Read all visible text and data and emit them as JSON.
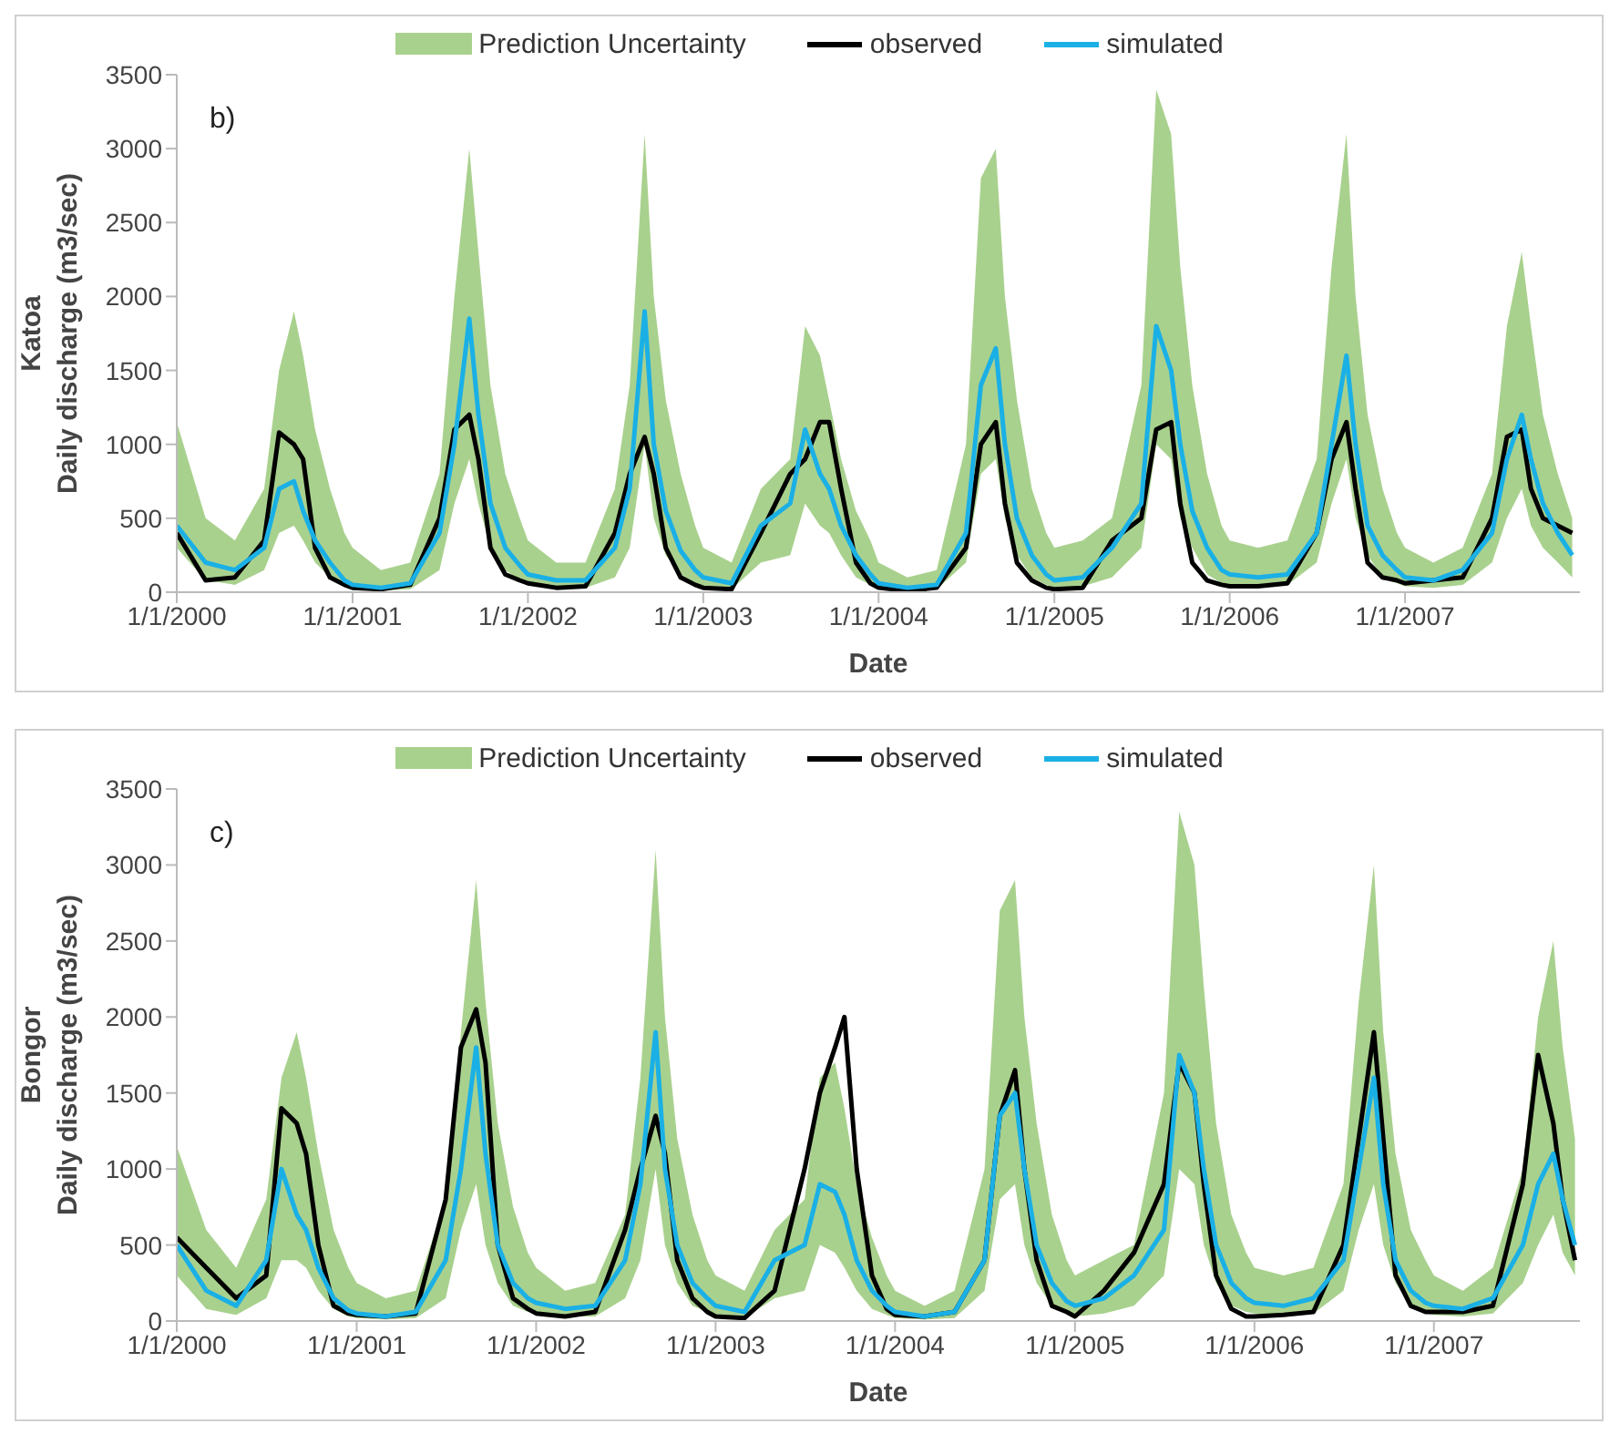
{
  "chart_data": [
    {
      "type": "line",
      "annotations": [
        "b)",
        "Prediction Uncertainty"
      ],
      "xlabel": "Date",
      "ylabel": "Katoa\nDaily discharge (m3/sec)",
      "legend": "top",
      "marker": "none",
      "line_style": "solid",
      "x": [
        "2000-01-01",
        "2000-03-01",
        "2000-05-01",
        "2000-07-01",
        "2000-08-01",
        "2000-09-01",
        "2000-09-20",
        "2000-10-15",
        "2000-11-15",
        "2000-12-15",
        "2001-01-01",
        "2001-03-01",
        "2001-05-01",
        "2001-07-01",
        "2001-08-01",
        "2001-09-01",
        "2001-09-20",
        "2001-10-15",
        "2001-11-15",
        "2001-12-15",
        "2002-01-01",
        "2002-03-01",
        "2002-05-01",
        "2002-07-01",
        "2002-08-01",
        "2002-09-01",
        "2002-09-20",
        "2002-10-15",
        "2002-11-15",
        "2002-12-15",
        "2003-01-01",
        "2003-03-01",
        "2003-05-01",
        "2003-07-01",
        "2003-08-01",
        "2003-09-01",
        "2003-09-20",
        "2003-10-15",
        "2003-11-15",
        "2003-12-15",
        "2004-01-01",
        "2004-03-01",
        "2004-05-01",
        "2004-07-01",
        "2004-08-01",
        "2004-09-01",
        "2004-09-20",
        "2004-10-15",
        "2004-11-15",
        "2004-12-15",
        "2005-01-01",
        "2005-03-01",
        "2005-05-01",
        "2005-07-01",
        "2005-08-01",
        "2005-09-01",
        "2005-09-20",
        "2005-10-15",
        "2005-11-15",
        "2005-12-15",
        "2006-01-01",
        "2006-03-01",
        "2006-05-01",
        "2006-07-01",
        "2006-08-01",
        "2006-09-01",
        "2006-09-20",
        "2006-10-15",
        "2006-11-15",
        "2006-12-15",
        "2007-01-01",
        "2007-03-01",
        "2007-05-01",
        "2007-07-01",
        "2007-08-01",
        "2007-09-01",
        "2007-09-20",
        "2007-10-15",
        "2007-11-15",
        "2007-12-15"
      ],
      "xlim": [
        "2000-01-01",
        "2007-12-31"
      ],
      "xticks": [
        {
          "value": "2000-01-01",
          "label": "1/1/2000"
        },
        {
          "value": "2001-01-01",
          "label": "1/1/2001"
        },
        {
          "value": "2002-01-01",
          "label": "1/1/2002"
        },
        {
          "value": "2003-01-01",
          "label": "1/1/2003"
        },
        {
          "value": "2004-01-01",
          "label": "1/1/2004"
        },
        {
          "value": "2005-01-01",
          "label": "1/1/2005"
        },
        {
          "value": "2006-01-01",
          "label": "1/1/2006"
        },
        {
          "value": "2007-01-01",
          "label": "1/1/2007"
        }
      ],
      "ylim": [
        0,
        3500
      ],
      "yticks": [
        0,
        500,
        1000,
        1500,
        2000,
        2500,
        3000,
        3500
      ],
      "series": [
        {
          "name": "observed",
          "color": "#000000",
          "values": [
            400,
            80,
            100,
            350,
            1080,
            1000,
            900,
            300,
            100,
            50,
            30,
            20,
            50,
            500,
            1100,
            1200,
            900,
            300,
            120,
            80,
            60,
            30,
            40,
            400,
            800,
            1050,
            800,
            300,
            100,
            50,
            30,
            20,
            400,
            800,
            900,
            1150,
            1150,
            700,
            200,
            60,
            30,
            10,
            30,
            300,
            1000,
            1150,
            600,
            200,
            80,
            30,
            20,
            30,
            350,
            500,
            1100,
            1150,
            600,
            200,
            80,
            50,
            40,
            40,
            60,
            400,
            900,
            1150,
            700,
            200,
            100,
            80,
            60,
            80,
            100,
            500,
            1050,
            1100,
            700,
            500,
            450,
            400
          ]
        },
        {
          "name": "simulated",
          "color": "#1ab0e6",
          "values": [
            450,
            200,
            150,
            300,
            700,
            750,
            550,
            350,
            200,
            80,
            50,
            30,
            60,
            400,
            1000,
            1850,
            1200,
            600,
            300,
            180,
            120,
            80,
            80,
            300,
            700,
            1900,
            1000,
            550,
            280,
            150,
            100,
            60,
            450,
            600,
            1100,
            800,
            700,
            450,
            250,
            120,
            60,
            30,
            50,
            400,
            1400,
            1650,
            1000,
            500,
            250,
            120,
            80,
            100,
            300,
            600,
            1800,
            1500,
            1000,
            550,
            300,
            150,
            120,
            100,
            120,
            400,
            1000,
            1600,
            1000,
            450,
            250,
            150,
            100,
            80,
            150,
            400,
            900,
            1200,
            900,
            600,
            400,
            250
          ],
          "lower": [
            300,
            80,
            50,
            150,
            400,
            450,
            350,
            200,
            100,
            40,
            20,
            10,
            20,
            150,
            600,
            900,
            600,
            300,
            150,
            80,
            50,
            30,
            30,
            100,
            300,
            1000,
            500,
            250,
            120,
            60,
            40,
            20,
            200,
            250,
            600,
            450,
            400,
            250,
            100,
            50,
            20,
            10,
            20,
            200,
            800,
            900,
            500,
            250,
            100,
            50,
            30,
            40,
            100,
            300,
            1000,
            900,
            500,
            300,
            120,
            60,
            50,
            40,
            50,
            200,
            600,
            900,
            500,
            250,
            100,
            60,
            40,
            30,
            50,
            200,
            500,
            700,
            450,
            300,
            200,
            100
          ],
          "upper": [
            1150,
            500,
            350,
            700,
            1500,
            1900,
            1600,
            1100,
            700,
            400,
            300,
            150,
            200,
            800,
            2000,
            3000,
            2300,
            1400,
            800,
            500,
            350,
            200,
            200,
            700,
            1400,
            3100,
            2000,
            1300,
            800,
            450,
            300,
            200,
            700,
            900,
            1800,
            1600,
            1300,
            900,
            550,
            350,
            200,
            100,
            150,
            1000,
            2800,
            3000,
            2000,
            1300,
            700,
            400,
            300,
            350,
            500,
            1400,
            3400,
            3100,
            2200,
            1400,
            800,
            450,
            350,
            300,
            350,
            900,
            2200,
            3100,
            2000,
            1200,
            700,
            400,
            300,
            200,
            300,
            800,
            1800,
            2300,
            1800,
            1200,
            800,
            500
          ]
        }
      ]
    },
    {
      "type": "line",
      "annotations": [
        "c)",
        "Prediction Uncertainty"
      ],
      "xlabel": "Date",
      "ylabel": "Bongor\nDaily discharge (m3/sec)",
      "legend": "top",
      "marker": "none",
      "line_style": "solid",
      "x": [
        "2000-01-01",
        "2000-03-01",
        "2000-05-01",
        "2000-07-01",
        "2000-08-01",
        "2000-09-01",
        "2000-09-20",
        "2000-10-15",
        "2000-11-15",
        "2000-12-15",
        "2001-01-01",
        "2001-03-01",
        "2001-05-01",
        "2001-07-01",
        "2001-08-01",
        "2001-09-01",
        "2001-09-20",
        "2001-10-15",
        "2001-11-15",
        "2001-12-15",
        "2002-01-01",
        "2002-03-01",
        "2002-05-01",
        "2002-07-01",
        "2002-08-01",
        "2002-09-01",
        "2002-09-20",
        "2002-10-15",
        "2002-11-15",
        "2002-12-15",
        "2003-01-01",
        "2003-03-01",
        "2003-05-01",
        "2003-07-01",
        "2003-08-01",
        "2003-09-01",
        "2003-09-20",
        "2003-10-15",
        "2003-11-15",
        "2003-12-15",
        "2004-01-01",
        "2004-03-01",
        "2004-05-01",
        "2004-07-01",
        "2004-08-01",
        "2004-09-01",
        "2004-09-20",
        "2004-10-15",
        "2004-11-15",
        "2004-12-15",
        "2005-01-01",
        "2005-03-01",
        "2005-05-01",
        "2005-07-01",
        "2005-08-01",
        "2005-09-01",
        "2005-09-20",
        "2005-10-15",
        "2005-11-15",
        "2005-12-15",
        "2006-01-01",
        "2006-03-01",
        "2006-05-01",
        "2006-07-01",
        "2006-08-01",
        "2006-09-01",
        "2006-09-20",
        "2006-10-15",
        "2006-11-15",
        "2006-12-15",
        "2007-01-01",
        "2007-03-01",
        "2007-05-01",
        "2007-07-01",
        "2007-08-01",
        "2007-09-01",
        "2007-09-20",
        "2007-10-15"
      ],
      "xlim": [
        "2000-01-01",
        "2007-10-25"
      ],
      "xticks": [
        {
          "value": "2000-01-01",
          "label": "1/1/2000"
        },
        {
          "value": "2001-01-01",
          "label": "1/1/2001"
        },
        {
          "value": "2002-01-01",
          "label": "1/1/2002"
        },
        {
          "value": "2003-01-01",
          "label": "1/1/2003"
        },
        {
          "value": "2004-01-01",
          "label": "1/1/2004"
        },
        {
          "value": "2005-01-01",
          "label": "1/1/2005"
        },
        {
          "value": "2006-01-01",
          "label": "1/1/2006"
        },
        {
          "value": "2007-01-01",
          "label": "1/1/2007"
        }
      ],
      "ylim": [
        0,
        3500
      ],
      "yticks": [
        0,
        500,
        1000,
        1500,
        2000,
        2500,
        3000,
        3500
      ],
      "series": [
        {
          "name": "observed",
          "color": "#000000",
          "values": [
            550,
            350,
            150,
            300,
            1400,
            1300,
            1100,
            500,
            100,
            50,
            40,
            30,
            50,
            800,
            1800,
            2050,
            1700,
            500,
            150,
            80,
            50,
            30,
            60,
            600,
            1000,
            1350,
            1100,
            400,
            150,
            60,
            30,
            20,
            200,
            1000,
            1500,
            1800,
            2000,
            1000,
            300,
            80,
            40,
            30,
            60,
            400,
            1350,
            1650,
            1000,
            400,
            100,
            60,
            30,
            200,
            450,
            900,
            1700,
            1500,
            900,
            300,
            80,
            30,
            30,
            40,
            60,
            500,
            1200,
            1900,
            1200,
            300,
            100,
            60,
            60,
            60,
            100,
            900,
            1750,
            1300,
            800,
            400
          ]
        },
        {
          "name": "simulated",
          "color": "#1ab0e6",
          "values": [
            500,
            200,
            100,
            400,
            1000,
            700,
            600,
            350,
            150,
            70,
            50,
            30,
            60,
            400,
            1000,
            1800,
            1100,
            500,
            250,
            150,
            120,
            80,
            100,
            400,
            900,
            1900,
            1000,
            500,
            250,
            150,
            100,
            60,
            400,
            500,
            900,
            850,
            700,
            400,
            200,
            100,
            60,
            30,
            60,
            400,
            1350,
            1500,
            1000,
            500,
            250,
            130,
            100,
            150,
            300,
            600,
            1750,
            1500,
            1000,
            500,
            250,
            150,
            120,
            100,
            150,
            400,
            1000,
            1600,
            900,
            400,
            200,
            120,
            100,
            80,
            150,
            500,
            900,
            1100,
            800,
            500
          ],
          "lower": [
            300,
            80,
            40,
            150,
            400,
            400,
            350,
            200,
            80,
            30,
            20,
            10,
            20,
            150,
            600,
            900,
            500,
            250,
            100,
            60,
            50,
            30,
            30,
            150,
            400,
            1000,
            500,
            250,
            100,
            60,
            40,
            20,
            150,
            200,
            500,
            450,
            350,
            200,
            80,
            40,
            20,
            10,
            20,
            200,
            800,
            900,
            500,
            250,
            100,
            50,
            30,
            50,
            100,
            300,
            1000,
            900,
            500,
            250,
            100,
            60,
            50,
            40,
            50,
            200,
            600,
            900,
            500,
            250,
            100,
            50,
            40,
            30,
            50,
            250,
            500,
            700,
            450,
            300
          ],
          "upper": [
            1150,
            600,
            350,
            800,
            1600,
            1900,
            1600,
            1100,
            600,
            350,
            250,
            150,
            200,
            800,
            1900,
            2900,
            2100,
            1300,
            750,
            450,
            350,
            200,
            250,
            700,
            1600,
            3100,
            2000,
            1200,
            700,
            400,
            300,
            200,
            600,
            800,
            1600,
            1700,
            1400,
            900,
            550,
            300,
            200,
            100,
            200,
            1000,
            2700,
            2900,
            2000,
            1300,
            700,
            400,
            300,
            400,
            500,
            1500,
            3350,
            3000,
            2200,
            1300,
            700,
            450,
            350,
            300,
            350,
            900,
            2100,
            3000,
            1900,
            1100,
            600,
            400,
            300,
            200,
            350,
            1000,
            2000,
            2500,
            1800,
            1200
          ]
        }
      ]
    }
  ]
}
